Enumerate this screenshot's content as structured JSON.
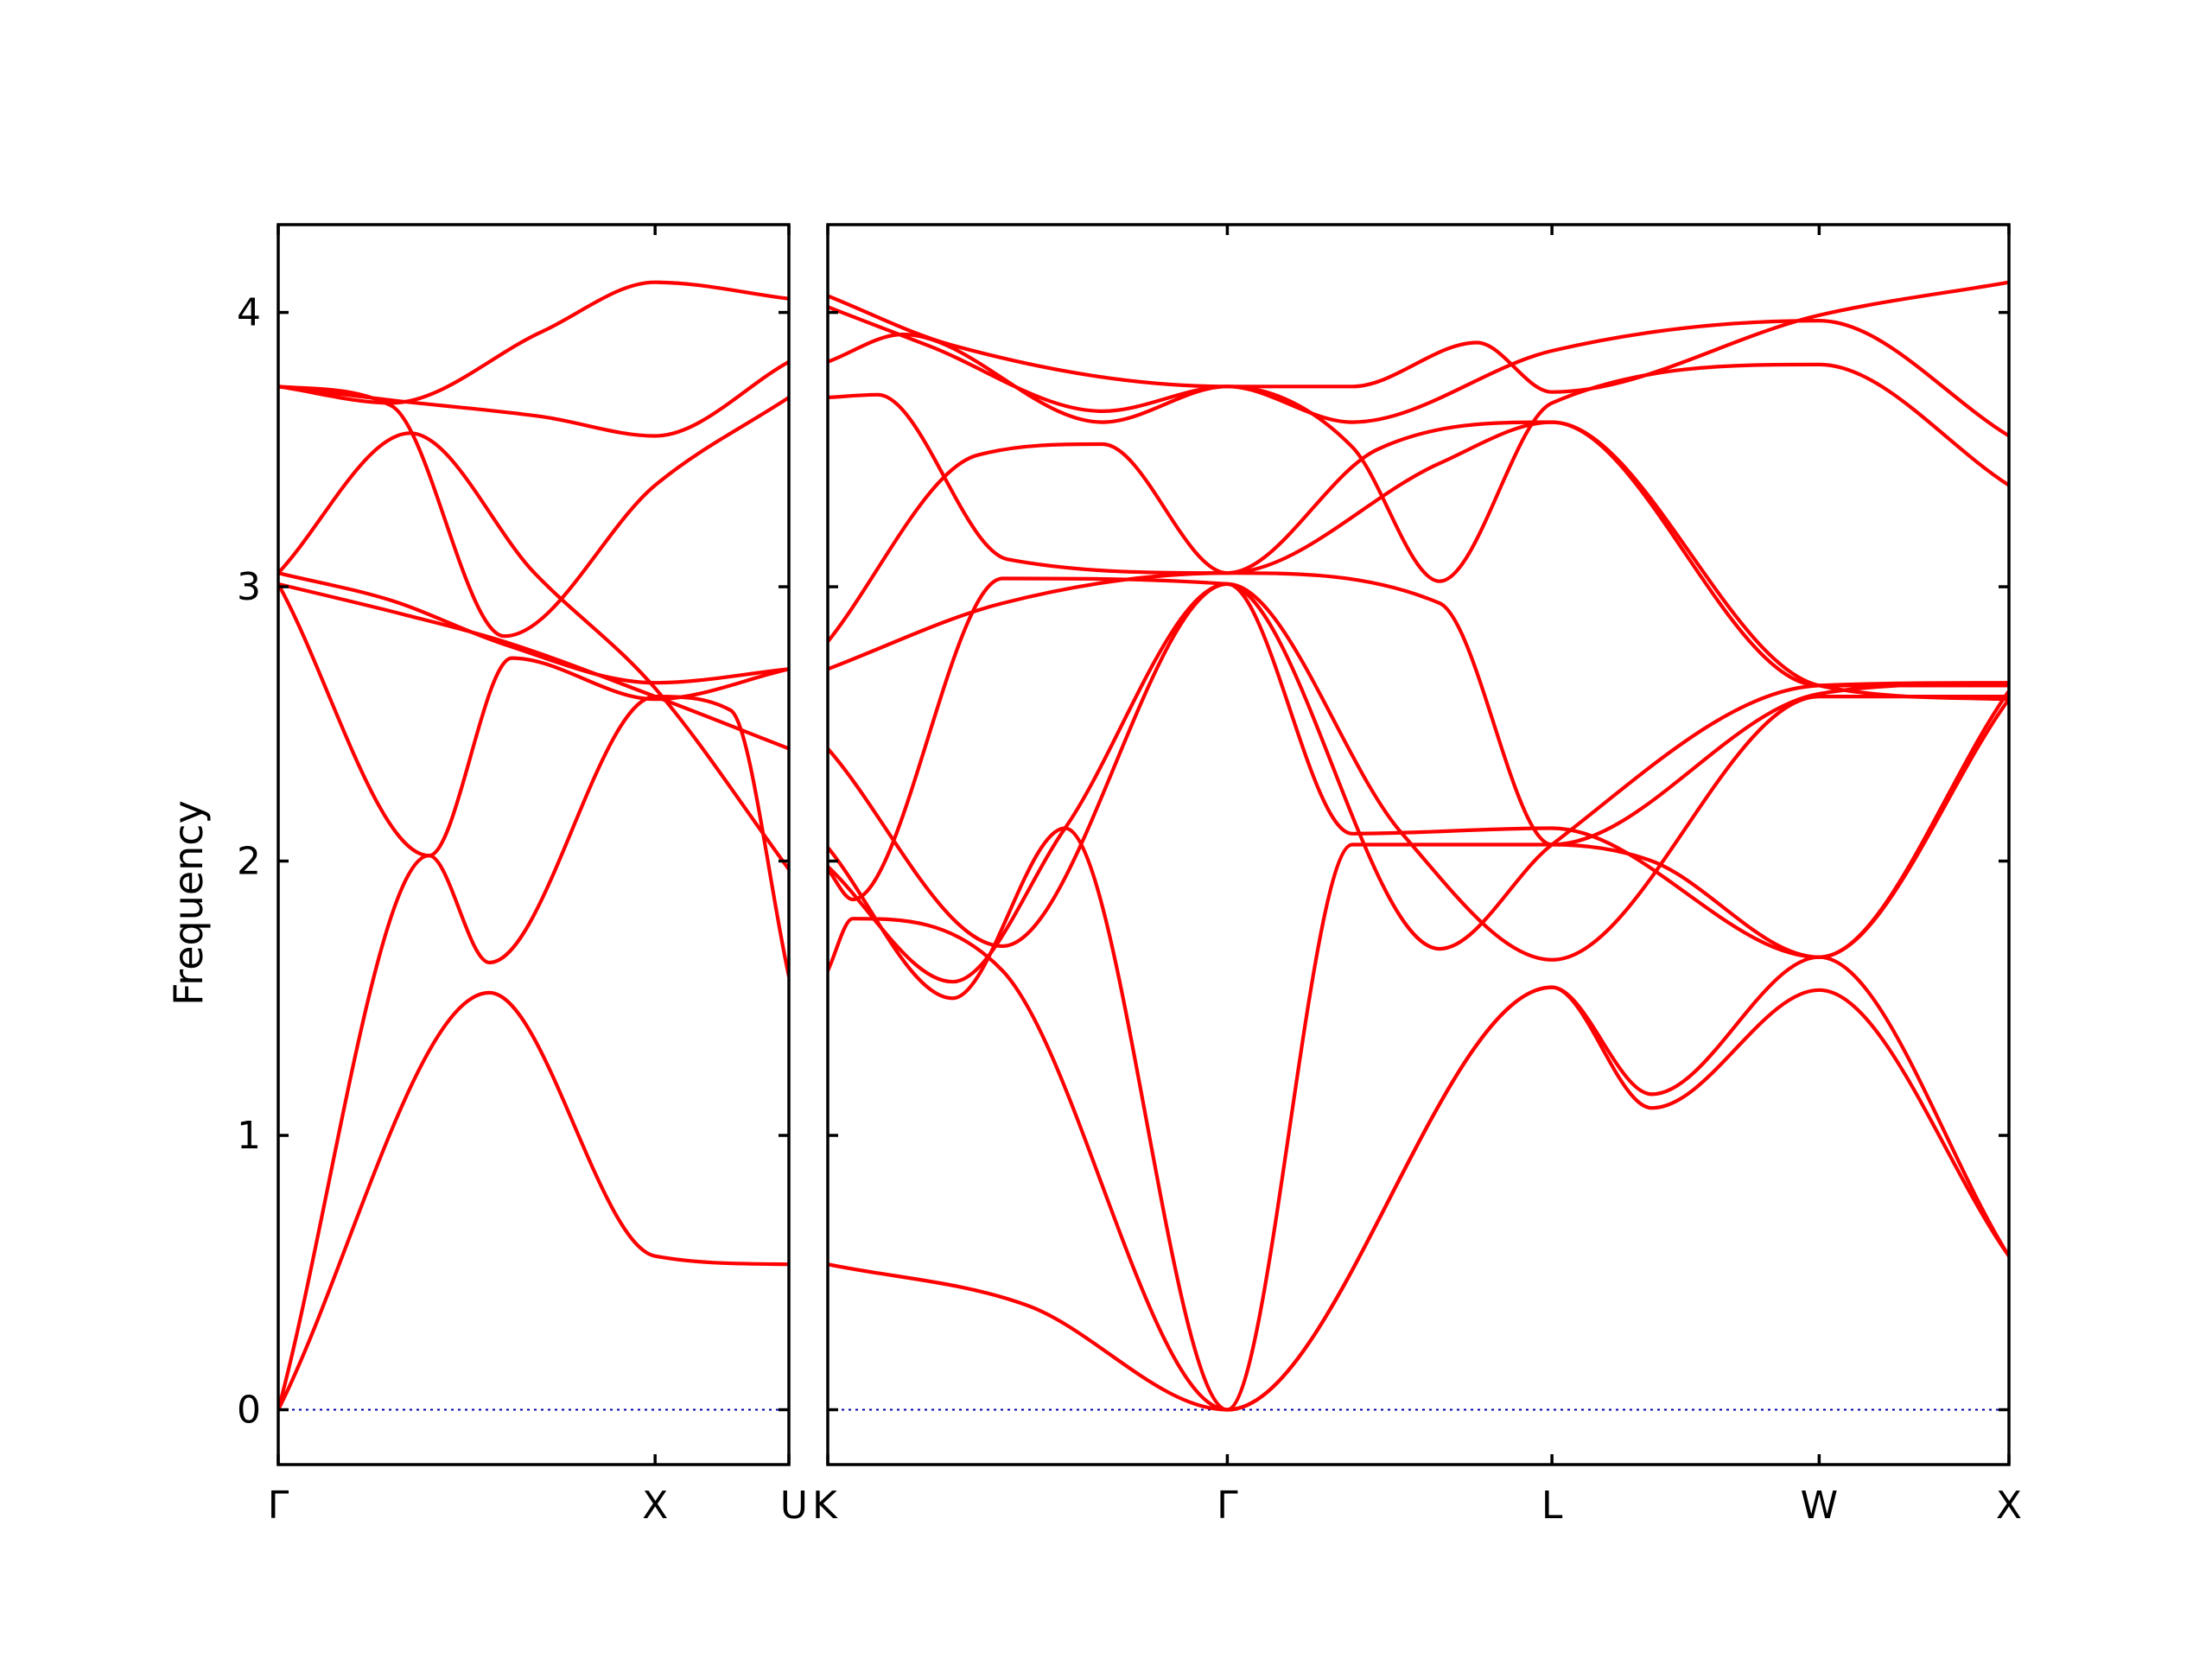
{
  "chart_data": {
    "type": "line",
    "title": "",
    "ylabel": "Frequency",
    "xlabel": "",
    "ylim": [
      -0.2,
      4.32
    ],
    "yticks": [
      0,
      1,
      2,
      3,
      4
    ],
    "grid": false,
    "colors": {
      "bands": "#ff0000",
      "zero_line": "#0000aa",
      "axes": "#000000"
    },
    "reference_line": {
      "y": 0,
      "style": "dotted"
    },
    "panels": [
      {
        "name": "panel-1",
        "xlim": [
          0,
          1.355
        ],
        "high_symmetry_points": [
          {
            "label": "Γ",
            "x": 0
          },
          {
            "label": "X",
            "x": 1
          },
          {
            "label": "U",
            "x": 1.355
          }
        ],
        "series": [
          {
            "name": "",
            "x": [
              0,
              0.56,
              1,
              1.355
            ],
            "y": [
              0,
              1.52,
              0.56,
              0.53
            ]
          },
          {
            "name": "",
            "x": [
              0,
              0.4,
              0.56,
              1,
              1.2,
              1.355
            ],
            "y": [
              0,
              2.02,
              1.63,
              2.6,
              2.55,
              1.58
            ]
          },
          {
            "name": "",
            "x": [
              0,
              0.4,
              0.62,
              1,
              1.355
            ],
            "y": [
              3.01,
              2.02,
              2.74,
              2.59,
              2.7
            ]
          },
          {
            "name": "",
            "x": [
              0,
              0.33,
              0.6,
              1,
              1.355
            ],
            "y": [
              3.01,
              2.9,
              2.8,
              2.6,
              2.41
            ]
          },
          {
            "name": "",
            "x": [
              0,
              0.3,
              0.6,
              1,
              1.355
            ],
            "y": [
              3.05,
              2.95,
              2.79,
              2.65,
              2.7
            ]
          },
          {
            "name": "",
            "x": [
              0,
              0.35,
              0.68,
              1,
              1.355
            ],
            "y": [
              3.05,
              3.56,
              3.05,
              2.63,
              1.97
            ]
          },
          {
            "name": "",
            "x": [
              0,
              0.3,
              0.6,
              1,
              1.355
            ],
            "y": [
              3.73,
              3.66,
              2.82,
              3.37,
              3.69
            ]
          },
          {
            "name": "",
            "x": [
              0,
              0.3,
              0.7,
              1,
              1.355
            ],
            "y": [
              3.73,
              3.68,
              3.62,
              3.55,
              3.82
            ]
          },
          {
            "name": "",
            "x": [
              0,
              0.3,
              0.7,
              1,
              1.355
            ],
            "y": [
              3.73,
              3.67,
              3.93,
              4.11,
              4.05
            ]
          }
        ]
      },
      {
        "name": "panel-2",
        "xlim": [
          0,
          4.73
        ],
        "high_symmetry_points": [
          {
            "label": "K",
            "x": 0
          },
          {
            "label": "Γ",
            "x": 1.6
          },
          {
            "label": "L",
            "x": 2.9
          },
          {
            "label": "W",
            "x": 3.97
          },
          {
            "label": "X",
            "x": 4.73
          }
        ],
        "series": [
          {
            "name": "",
            "x": [
              0,
              0.8,
              1.6,
              2.9,
              3.3,
              3.97,
              4.73
            ],
            "y": [
              0.53,
              0.38,
              0,
              1.54,
              1.1,
              1.53,
              0.56
            ]
          },
          {
            "name": "",
            "x": [
              0,
              0.1,
              0.7,
              1.6,
              2.9,
              3.3,
              3.97,
              4.73
            ],
            "y": [
              1.6,
              1.79,
              1.6,
              0,
              1.54,
              1.15,
              1.65,
              0.56
            ]
          },
          {
            "name": "",
            "x": [
              0,
              0.5,
              0.95,
              1.6,
              2.1,
              2.9,
              3.3,
              3.97,
              4.73
            ],
            "y": [
              2.05,
              1.5,
              2.12,
              0,
              2.06,
              2.06,
              2.0,
              1.65,
              2.59
            ]
          },
          {
            "name": "",
            "x": [
              0,
              0.5,
              0.95,
              1.6,
              2.1,
              2.9,
              3.97,
              4.73
            ],
            "y": [
              1.98,
              1.56,
              2.12,
              3.01,
              2.1,
              2.12,
              1.65,
              2.62
            ]
          },
          {
            "name": "",
            "x": [
              0,
              0.7,
              1.6,
              2.3,
              2.9,
              3.97,
              4.73
            ],
            "y": [
              2.41,
              1.69,
              3.01,
              2.1,
              1.64,
              2.6,
              2.6
            ]
          },
          {
            "name": "",
            "x": [
              0,
              0.1,
              0.7,
              1.6,
              2.45,
              2.9,
              3.97,
              4.73
            ],
            "y": [
              1.97,
              1.86,
              3.03,
              3.01,
              1.68,
              2.06,
              2.64,
              2.65
            ]
          },
          {
            "name": "",
            "x": [
              0,
              0.7,
              1.6,
              2.45,
              2.9,
              3.97,
              4.73
            ],
            "y": [
              2.7,
              2.94,
              3.05,
              2.94,
              2.06,
              2.61,
              2.65
            ]
          },
          {
            "name": "",
            "x": [
              0,
              0.6,
              1.1,
              1.6,
              2.2,
              2.9,
              3.97,
              4.73
            ],
            "y": [
              2.8,
              3.48,
              3.52,
              3.05,
              3.5,
              3.6,
              2.64,
              2.64
            ]
          },
          {
            "name": "",
            "x": [
              0,
              0.2,
              0.72,
              1.6,
              2.45,
              2.9,
              3.97,
              4.73
            ],
            "y": [
              3.69,
              3.7,
              3.1,
              3.05,
              3.45,
              3.6,
              2.64,
              2.59
            ]
          },
          {
            "name": "",
            "x": [
              0,
              0.3,
              1.1,
              1.6,
              2.1,
              2.45,
              2.9,
              3.97,
              4.73
            ],
            "y": [
              3.82,
              3.92,
              3.6,
              3.73,
              3.51,
              3.02,
              3.67,
              3.81,
              3.37
            ]
          },
          {
            "name": "",
            "x": [
              0,
              0.4,
              1.1,
              1.6,
              2.1,
              2.9,
              3.97,
              4.73
            ],
            "y": [
              4.02,
              3.88,
              3.64,
              3.73,
              3.6,
              3.86,
              3.97,
              3.55
            ]
          },
          {
            "name": "",
            "x": [
              0,
              0.5,
              1.6,
              2.1,
              2.6,
              2.9,
              3.97,
              4.73
            ],
            "y": [
              4.06,
              3.88,
              3.73,
              3.73,
              3.89,
              3.71,
              3.99,
              4.11
            ]
          }
        ]
      }
    ]
  }
}
